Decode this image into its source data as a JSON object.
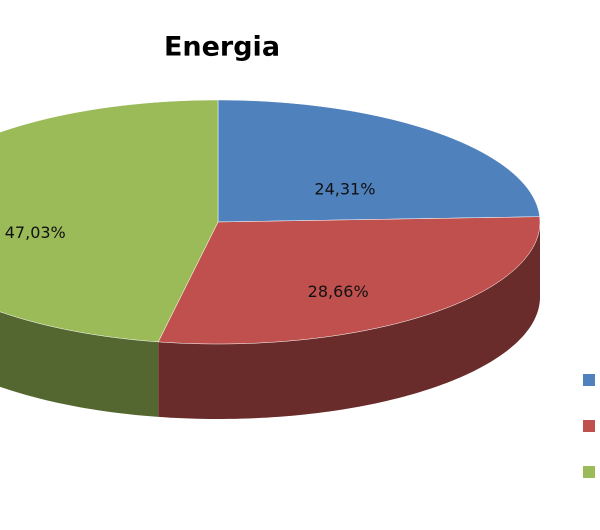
{
  "chart_data": {
    "type": "pie",
    "title": "Energia",
    "categories": [
      null,
      null,
      null
    ],
    "values": [
      24.31,
      28.66,
      47.03
    ],
    "value_labels": [
      "24,31%",
      "28,66%",
      "47,03%"
    ],
    "colors": [
      "#4f81bd",
      "#c0504d",
      "#9bbb59"
    ]
  }
}
